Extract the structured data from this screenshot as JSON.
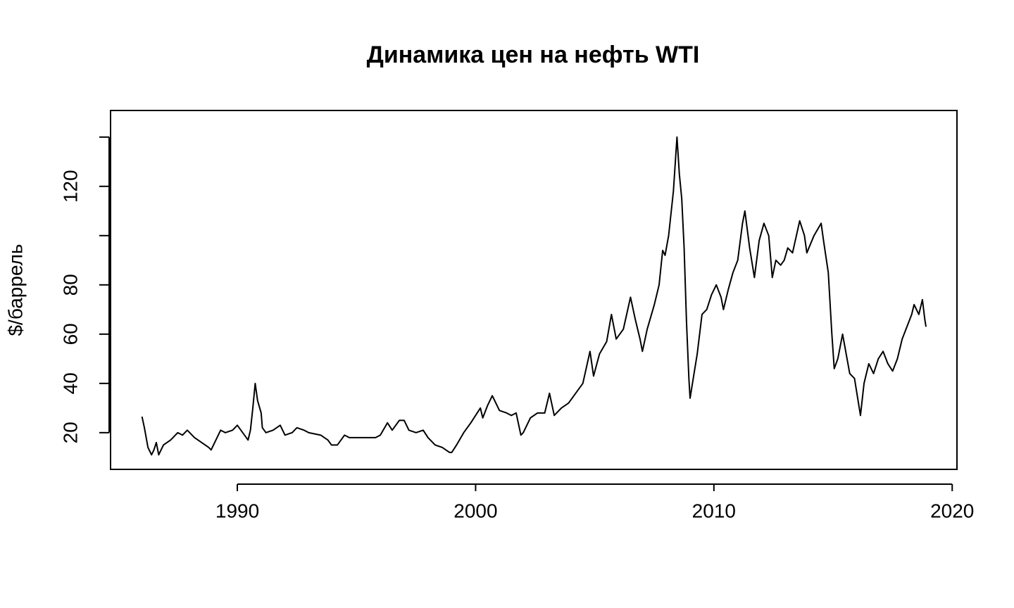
{
  "chart_data": {
    "type": "line",
    "title": "Динамика цен на нефть WTI",
    "y_label": "$/баррель",
    "color": "#000000",
    "xlim": [
      1984.68,
      2020.2
    ],
    "xticks": [
      1990,
      2000,
      2010,
      2020
    ],
    "ylim": [
      5.1,
      150.8
    ],
    "yticks": [
      20,
      40,
      60,
      80,
      {
        "value": 100,
        "label": null
      },
      120,
      {
        "value": 140,
        "label": null
      }
    ],
    "x": [
      1986.0,
      1986.1,
      1986.25,
      1986.4,
      1986.5,
      1986.6,
      1986.7,
      1986.9,
      1987.2,
      1987.5,
      1987.7,
      1987.9,
      1988.2,
      1988.5,
      1988.8,
      1988.9,
      1989.2,
      1989.3,
      1989.5,
      1989.8,
      1990.0,
      1990.3,
      1990.45,
      1990.55,
      1990.65,
      1990.75,
      1990.85,
      1991.0,
      1991.05,
      1991.2,
      1991.5,
      1991.8,
      1992.0,
      1992.3,
      1992.5,
      1992.8,
      1993.0,
      1993.5,
      1993.8,
      1993.95,
      1994.2,
      1994.5,
      1994.7,
      1995.0,
      1995.5,
      1995.8,
      1996.0,
      1996.3,
      1996.5,
      1996.8,
      1997.0,
      1997.2,
      1997.5,
      1997.8,
      1998.0,
      1998.3,
      1998.6,
      1998.9,
      1999.0,
      1999.2,
      1999.5,
      1999.8,
      2000.0,
      2000.2,
      2000.3,
      2000.5,
      2000.7,
      2000.9,
      2001.0,
      2001.3,
      2001.5,
      2001.7,
      2001.9,
      2002.0,
      2002.3,
      2002.6,
      2002.9,
      2003.1,
      2003.3,
      2003.6,
      2003.9,
      2004.2,
      2004.5,
      2004.8,
      2004.95,
      2005.2,
      2005.5,
      2005.7,
      2005.9,
      2006.2,
      2006.5,
      2006.7,
      2006.9,
      2007.0,
      2007.2,
      2007.5,
      2007.7,
      2007.85,
      2007.95,
      2008.1,
      2008.3,
      2008.45,
      2008.55,
      2008.65,
      2008.75,
      2008.85,
      2008.95,
      2009.0,
      2009.1,
      2009.3,
      2009.5,
      2009.7,
      2009.9,
      2010.1,
      2010.3,
      2010.4,
      2010.6,
      2010.8,
      2011.0,
      2011.2,
      2011.3,
      2011.5,
      2011.7,
      2011.9,
      2012.1,
      2012.3,
      2012.45,
      2012.6,
      2012.8,
      2012.95,
      2013.1,
      2013.3,
      2013.6,
      2013.8,
      2013.9,
      2014.2,
      2014.5,
      2014.6,
      2014.8,
      2014.95,
      2015.05,
      2015.2,
      2015.4,
      2015.55,
      2015.7,
      2015.9,
      2016.1,
      2016.15,
      2016.3,
      2016.5,
      2016.7,
      2016.9,
      2017.1,
      2017.3,
      2017.5,
      2017.7,
      2017.9,
      2018.1,
      2018.3,
      2018.4,
      2018.6,
      2018.75,
      2018.85,
      2018.9
    ],
    "values": [
      26.5,
      22,
      14,
      11,
      13,
      16,
      11,
      15,
      17,
      20,
      19,
      21,
      18,
      16,
      14,
      13,
      19,
      21,
      20,
      21,
      23,
      19,
      17,
      21,
      30,
      40,
      33,
      28,
      22,
      20,
      21,
      23,
      19,
      20,
      22,
      21,
      20,
      19,
      17,
      15,
      15,
      19,
      18,
      18,
      18,
      18,
      19,
      24,
      21,
      25,
      25,
      21,
      20,
      21,
      18,
      15,
      14,
      12,
      12,
      15,
      20,
      24,
      27,
      30,
      26,
      31,
      35,
      31,
      29,
      28,
      27,
      28,
      19,
      20,
      26,
      28,
      28,
      36,
      27,
      30,
      32,
      36,
      40,
      53,
      43,
      52,
      57,
      68,
      58,
      62,
      75,
      66,
      58,
      53,
      62,
      72,
      80,
      94,
      92,
      100,
      118,
      140,
      125,
      115,
      95,
      65,
      42,
      34,
      40,
      52,
      68,
      70,
      76,
      80,
      75,
      70,
      78,
      85,
      90,
      105,
      110,
      95,
      83,
      98,
      105,
      100,
      83,
      90,
      88,
      90,
      95,
      93,
      106,
      100,
      93,
      100,
      105,
      98,
      85,
      60,
      46,
      50,
      60,
      52,
      44,
      42,
      30,
      27,
      40,
      48,
      44,
      50,
      53,
      48,
      45,
      50,
      58,
      63,
      68,
      72,
      68,
      74,
      66,
      63
    ]
  }
}
